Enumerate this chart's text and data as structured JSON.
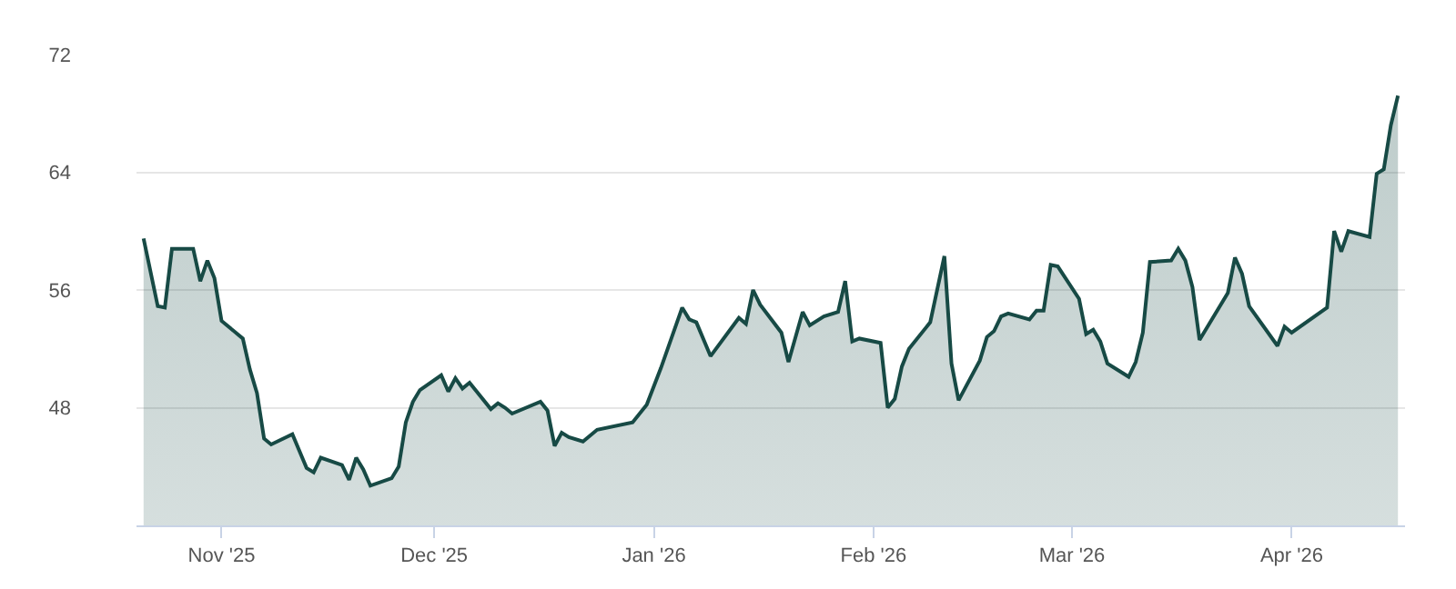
{
  "chart_data": {
    "type": "area",
    "color": "#174a45",
    "x": [
      "2025-10-21",
      "2025-10-23",
      "2025-10-24",
      "2025-10-25",
      "2025-10-28",
      "2025-10-29",
      "2025-10-30",
      "2025-10-31",
      "2025-11-01",
      "2025-11-04",
      "2025-11-05",
      "2025-11-06",
      "2025-11-07",
      "2025-11-08",
      "2025-11-11",
      "2025-11-13",
      "2025-11-14",
      "2025-11-15",
      "2025-11-18",
      "2025-11-19",
      "2025-11-20",
      "2025-11-21",
      "2025-11-22",
      "2025-11-25",
      "2025-11-26",
      "2025-11-27",
      "2025-11-28",
      "2025-11-29",
      "2025-12-02",
      "2025-12-03",
      "2025-12-04",
      "2025-12-05",
      "2025-12-06",
      "2025-12-09",
      "2025-12-10",
      "2025-12-11",
      "2025-12-12",
      "2025-12-16",
      "2025-12-17",
      "2025-12-18",
      "2025-12-19",
      "2025-12-20",
      "2025-12-22",
      "2025-12-24",
      "2025-12-29",
      "2025-12-31",
      "2026-01-02",
      "2026-01-05",
      "2026-01-06",
      "2026-01-07",
      "2026-01-09",
      "2026-01-13",
      "2026-01-14",
      "2026-01-15",
      "2026-01-16",
      "2026-01-19",
      "2026-01-20",
      "2026-01-22",
      "2026-01-23",
      "2026-01-25",
      "2026-01-27",
      "2026-01-28",
      "2026-01-29",
      "2026-01-30",
      "2026-02-02",
      "2026-02-03",
      "2026-02-04",
      "2026-02-05",
      "2026-02-06",
      "2026-02-09",
      "2026-02-11",
      "2026-02-12",
      "2026-02-13",
      "2026-02-16",
      "2026-02-17",
      "2026-02-18",
      "2026-02-19",
      "2026-02-20",
      "2026-02-23",
      "2026-02-24",
      "2026-02-25",
      "2026-02-26",
      "2026-02-27",
      "2026-03-02",
      "2026-03-03",
      "2026-03-04",
      "2026-03-05",
      "2026-03-06",
      "2026-03-09",
      "2026-03-10",
      "2026-03-11",
      "2026-03-12",
      "2026-03-15",
      "2026-03-16",
      "2026-03-17",
      "2026-03-18",
      "2026-03-19",
      "2026-03-23",
      "2026-03-24",
      "2026-03-25",
      "2026-03-26",
      "2026-03-30",
      "2026-03-31",
      "2026-04-01",
      "2026-04-06",
      "2026-04-07",
      "2026-04-08",
      "2026-04-09",
      "2026-04-12",
      "2026-04-13",
      "2026-04-14",
      "2026-04-15",
      "2026-04-16"
    ],
    "values": [
      59.5,
      54.9,
      54.8,
      58.8,
      58.8,
      56.6,
      58.0,
      56.8,
      53.9,
      52.7,
      50.6,
      49.0,
      45.9,
      45.5,
      46.2,
      43.9,
      43.6,
      44.6,
      44.1,
      43.1,
      44.6,
      43.8,
      42.7,
      43.2,
      44.0,
      47.0,
      48.4,
      49.2,
      50.2,
      49.1,
      50.0,
      49.3,
      49.7,
      47.9,
      48.3,
      48.0,
      47.6,
      48.4,
      47.8,
      45.4,
      46.3,
      46.0,
      45.7,
      46.5,
      47.0,
      48.2,
      50.7,
      54.8,
      54.0,
      53.8,
      51.5,
      54.1,
      53.7,
      56.0,
      55.0,
      53.1,
      51.1,
      54.5,
      53.6,
      54.2,
      54.5,
      56.6,
      52.5,
      52.7,
      52.4,
      48.0,
      48.6,
      50.8,
      52.0,
      53.8,
      58.3,
      51.0,
      48.5,
      51.2,
      52.8,
      53.2,
      54.2,
      54.4,
      54.0,
      54.6,
      54.6,
      57.7,
      57.6,
      55.4,
      53.0,
      53.3,
      52.5,
      51.0,
      50.1,
      51.1,
      53.1,
      57.9,
      58.0,
      58.8,
      58.0,
      56.2,
      52.6,
      55.8,
      58.2,
      57.1,
      54.9,
      52.2,
      53.5,
      53.1,
      54.8,
      60.0,
      58.6,
      60.0,
      59.6,
      63.9,
      64.2,
      67.2,
      69.2
    ],
    "xlim": [
      "2025-10-20",
      "2026-04-17"
    ],
    "xticks": [
      {
        "value": "2025-11-01",
        "label": "Nov '25"
      },
      {
        "value": "2025-12-01",
        "label": "Dec '25"
      },
      {
        "value": "2026-01-01",
        "label": "Jan '26"
      },
      {
        "value": "2026-02-01",
        "label": "Feb '26"
      },
      {
        "value": "2026-03-01",
        "label": "Mar '26"
      },
      {
        "value": "2026-04-01",
        "label": "Apr '26"
      }
    ],
    "ylim": [
      40,
      72
    ],
    "yticks": [
      48,
      56,
      64,
      72
    ],
    "grid": "y",
    "marker": "none",
    "line_style": "solid"
  }
}
